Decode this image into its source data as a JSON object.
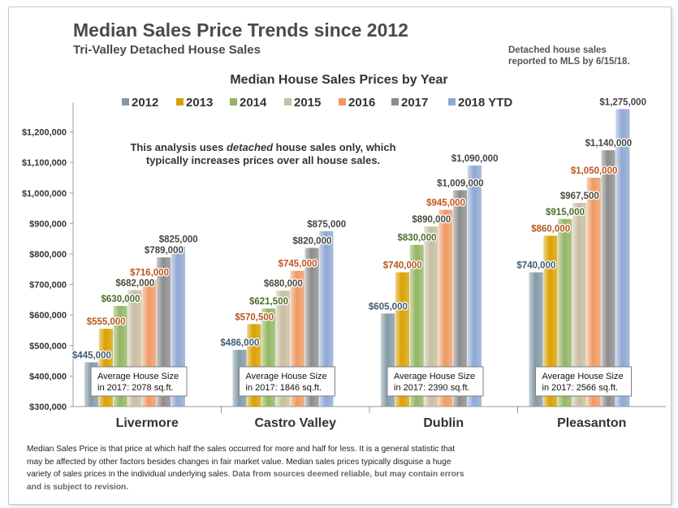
{
  "header": {
    "title": "Median Sales Price Trends since 2012",
    "subtitle": "Tri-Valley  Detached House Sales",
    "note_lines": [
      "Detached house sales",
      "reported to MLS by 6/15/18."
    ]
  },
  "footer": {
    "text": "Median Sales Price is that price at which half the sales occurred for more and half for less. It is a general statistic that may be affected by other factors besides changes in fair market value. Median sales prices typically disguise a huge variety of sales prices in the individual underlying sales.",
    "disclaimer": "Data from sources deemed reliable, but may contain errors and is subject to revision."
  },
  "chart_data": {
    "type": "bar",
    "title": "Median House Sales Prices by Year",
    "annotation": [
      "This analysis uses detached house sales only, which",
      "typically increases prices over all house sales."
    ],
    "categories": [
      "Livermore",
      "Castro Valley",
      "Dublin",
      "Pleasanton"
    ],
    "series": [
      {
        "name": "2012",
        "color": "#8499a8",
        "values": [
          445000,
          486000,
          605000,
          740000
        ],
        "labels": [
          "$445,000",
          "$486,000",
          "$605,000",
          "$740,000"
        ],
        "label_color": "#3f5a72"
      },
      {
        "name": "2013",
        "color": "#d9a100",
        "values": [
          555000,
          570500,
          740000,
          860000
        ],
        "labels": [
          "$555,000",
          "$570,500",
          "$740,000",
          "$860,000"
        ],
        "label_color": "#b5581d"
      },
      {
        "name": "2014",
        "color": "#93b563",
        "values": [
          630000,
          621500,
          830000,
          915000
        ],
        "labels": [
          "$630,000",
          "$621,500",
          "$830,000",
          "$915,000"
        ],
        "label_color": "#4d6b2a"
      },
      {
        "name": "2015",
        "color": "#c8bea0",
        "values": [
          682000,
          680000,
          890000,
          967500
        ],
        "labels": [
          "$682,000",
          "$680,000",
          "$890,000",
          "$967,500"
        ],
        "label_color": "#4a4a3a"
      },
      {
        "name": "2016",
        "color": "#ee9a63",
        "values": [
          716000,
          745000,
          945000,
          1050000
        ],
        "labels": [
          "$716,000",
          "$745,000",
          "$945,000",
          "$1,050,000"
        ],
        "label_color": "#c0531a"
      },
      {
        "name": "2017",
        "color": "#8c8c8c",
        "values": [
          789000,
          820000,
          1009000,
          1140000
        ],
        "labels": [
          "$789,000",
          "$820,000",
          "$1,009,000",
          "$1,140,000"
        ],
        "label_color": "#444444"
      },
      {
        "name": "2018 YTD",
        "color": "#8fa8d4",
        "values": [
          825000,
          875000,
          1090000,
          1275000
        ],
        "labels": [
          "$825,000",
          "$875,000",
          "$1,090,000",
          "$1,275,000"
        ],
        "label_color": "#444444"
      }
    ],
    "ylim": [
      300000,
      1275000
    ],
    "yticks": [
      300000,
      400000,
      500000,
      600000,
      700000,
      800000,
      900000,
      1000000,
      1100000,
      1200000
    ],
    "ytick_labels": [
      "$300,000",
      "$400,000",
      "$500,000",
      "$600,000",
      "$700,000",
      "$800,000",
      "$900,000",
      "$1,000,000",
      "$1,100,000",
      "$1,200,000"
    ],
    "size_boxes": [
      [
        "Average House Size",
        "in 2017: 2078 sq.ft."
      ],
      [
        "Average House Size",
        "in 2017: 1846 sq.ft."
      ],
      [
        "Average  House Size",
        "in 2017: 2390 sq.ft."
      ],
      [
        "Average House Size",
        "in 2017: 2566 sq.ft."
      ]
    ],
    "legend_position": "top",
    "grid": false
  }
}
